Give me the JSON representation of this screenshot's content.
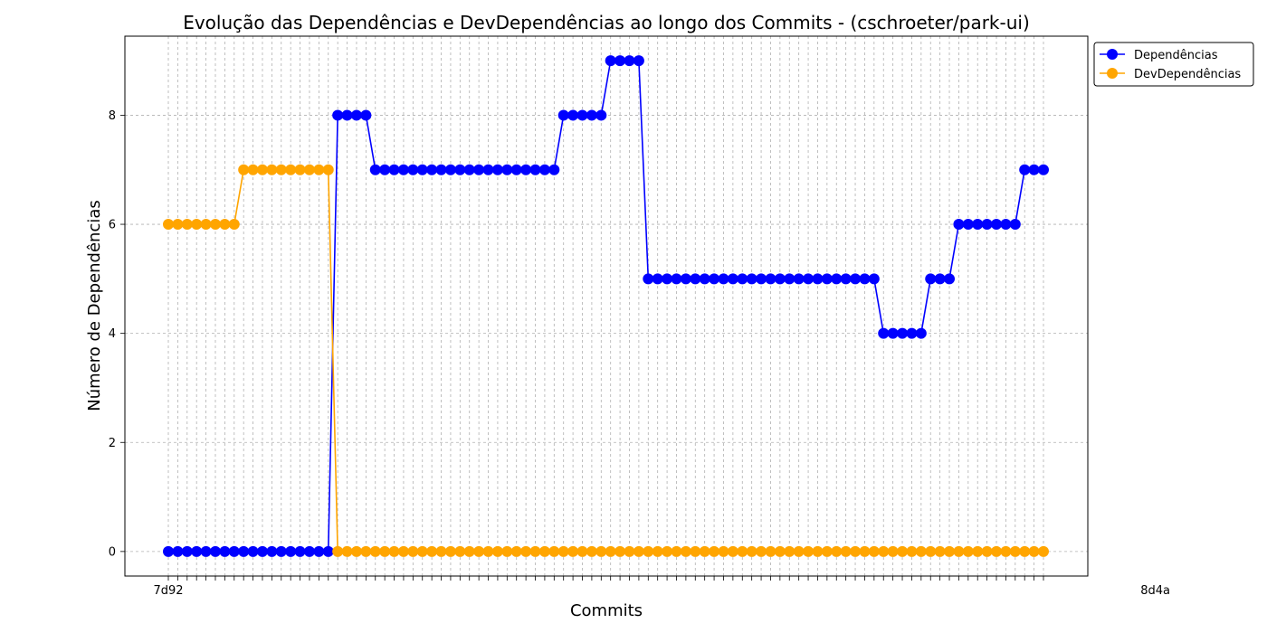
{
  "chart_data": {
    "type": "line",
    "title": "Evolução das Dependências e DevDependências ao longo dos Commits - (cschroeter/park-ui)",
    "xlabel": "Commits",
    "ylabel": "Número de Dependências",
    "x_tick_labels_visible": [
      "7d92",
      "8d4a"
    ],
    "ylim": [
      -0.45,
      9.45
    ],
    "yticks": [
      0,
      2,
      4,
      6,
      8
    ],
    "grid": true,
    "legend_position": "upper-right-outside",
    "series": [
      {
        "name": "Dependências",
        "color": "#0000ff",
        "values": [
          0,
          0,
          0,
          0,
          0,
          0,
          0,
          0,
          0,
          0,
          0,
          0,
          0,
          0,
          0,
          0,
          0,
          0,
          8,
          8,
          8,
          8,
          7,
          7,
          7,
          7,
          7,
          7,
          7,
          7,
          7,
          7,
          7,
          7,
          7,
          7,
          7,
          7,
          7,
          7,
          7,
          7,
          8,
          8,
          8,
          8,
          8,
          9,
          9,
          9,
          9,
          5,
          5,
          5,
          5,
          5,
          5,
          5,
          5,
          5,
          5,
          5,
          5,
          5,
          5,
          5,
          5,
          5,
          5,
          5,
          5,
          5,
          5,
          5,
          5,
          5,
          4,
          4,
          4,
          4,
          4,
          5,
          5,
          5,
          6,
          6,
          6,
          6,
          6,
          6,
          6,
          7,
          7,
          7
        ]
      },
      {
        "name": "DevDependências",
        "color": "#ffa500",
        "values": [
          6,
          6,
          6,
          6,
          6,
          6,
          6,
          6,
          7,
          7,
          7,
          7,
          7,
          7,
          7,
          7,
          7,
          7,
          0,
          0,
          0,
          0,
          0,
          0,
          0,
          0,
          0,
          0,
          0,
          0,
          0,
          0,
          0,
          0,
          0,
          0,
          0,
          0,
          0,
          0,
          0,
          0,
          0,
          0,
          0,
          0,
          0,
          0,
          0,
          0,
          0,
          0,
          0,
          0,
          0,
          0,
          0,
          0,
          0,
          0,
          0,
          0,
          0,
          0,
          0,
          0,
          0,
          0,
          0,
          0,
          0,
          0,
          0,
          0,
          0,
          0,
          0,
          0,
          0,
          0,
          0,
          0,
          0,
          0,
          0,
          0,
          0,
          0,
          0,
          0,
          0,
          0,
          0,
          0
        ]
      }
    ]
  }
}
